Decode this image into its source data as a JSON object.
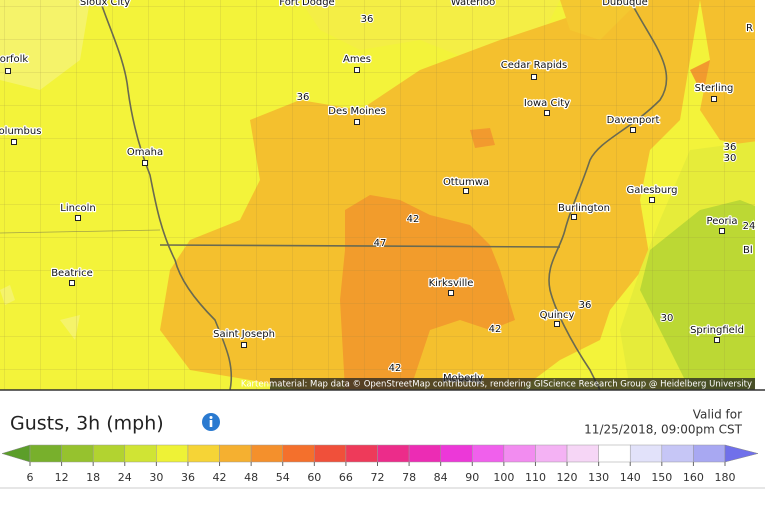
{
  "map": {
    "cities": [
      "Sioux City",
      "Fort Dodge",
      "Waterloo",
      "Dubuque",
      "R",
      "orfolk",
      "Ames",
      "Cedar Rapids",
      "Sterling",
      "Iowa City",
      "Des Moines",
      "Davenport",
      "olumbus",
      "Omaha",
      "Ottumwa",
      "Galesburg",
      "Burlington",
      "Lincoln",
      "Peoria",
      "Bl",
      "Beatrice",
      "Kirksville",
      "Quincy",
      "Saint Joseph",
      "Springfield",
      "Moberly"
    ],
    "contour_labels": [
      36,
      36,
      36,
      30,
      42,
      47,
      24,
      42,
      36,
      30,
      42
    ],
    "attribution": "Kartenmaterial: Map data © OpenStreetMap contributors, rendering GIScience Research Group @ Heidelberg University"
  },
  "legend": {
    "title": "Gusts, 3h (mph)",
    "valid_label": "Valid for",
    "valid_time": "11/25/2018, 09:00pm CST",
    "ticks": [
      6,
      12,
      18,
      24,
      30,
      36,
      42,
      48,
      54,
      60,
      66,
      72,
      78,
      84,
      90,
      100,
      110,
      120,
      130,
      140,
      150,
      160,
      180
    ],
    "colors": [
      "#5c9e2a",
      "#78b02c",
      "#96c22e",
      "#b2d330",
      "#d0e434",
      "#eef236",
      "#f6d436",
      "#f5b030",
      "#f4902c",
      "#f4702c",
      "#f0503a",
      "#ee3a5a",
      "#ec2c8a",
      "#ec2cb4",
      "#ec38d8",
      "#f060ec",
      "#f28cf0",
      "#f4b2f4",
      "#f6d6f6",
      "#ffffff",
      "#e2e2fa",
      "#c6c6f6",
      "#a8a8f2",
      "#8a8aee",
      "#7070ea"
    ]
  }
}
